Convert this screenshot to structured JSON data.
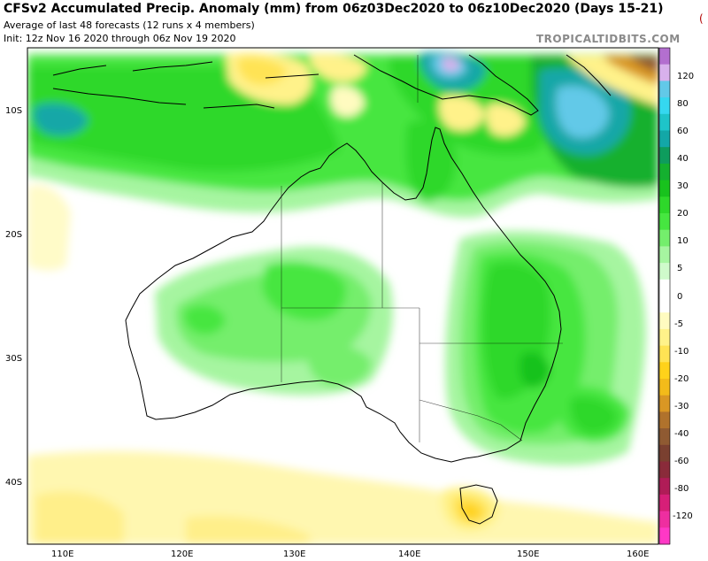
{
  "header": {
    "title": "CFSv2 Accumulated Precip. Anomaly (mm) from 06z03Dec2020 to 06z10Dec2020 (Days 15-21)",
    "subtitle": "Average of last 48 forecasts (12 runs x 4 members)",
    "init": "Init: 12z Nov 16 2020 through 06z Nov 19 2020",
    "brand": "TROPICALTIDBITS.COM",
    "corner_mark": "("
  },
  "map": {
    "region": "Australia",
    "lat_labels": [
      "10S",
      "20S",
      "30S",
      "40S"
    ],
    "lon_labels": [
      "110E",
      "120E",
      "130E",
      "140E",
      "150E",
      "160E"
    ]
  },
  "colorbar": {
    "labels": [
      "120",
      "80",
      "60",
      "40",
      "30",
      "20",
      "10",
      "5",
      "0",
      "-5",
      "-10",
      "-20",
      "-30",
      "-40",
      "-60",
      "-80",
      "-120"
    ],
    "colors": {
      "p140": "#b36fcf",
      "p120": "#d8b1ec",
      "p100": "#62c9e8",
      "p80": "#35d8f0",
      "p60": "#1ec4c9",
      "p50": "#13a7a7",
      "p40": "#0e9c5d",
      "p35": "#14b02f",
      "p30": "#18c21d",
      "p25": "#2ed82a",
      "p20": "#46e640",
      "p15": "#74ee6c",
      "p10": "#a6f5a0",
      "p5": "#cffacb",
      "zero": "#ffffff",
      "m5": "#fffbc0",
      "m10": "#fff28a",
      "m15": "#ffe354",
      "m20": "#ffd21a",
      "m25": "#f3bb1a",
      "m30": "#d99724",
      "m40": "#b0722c",
      "m50": "#8f5a32",
      "m60": "#7a4030",
      "m70": "#8a2b3a",
      "m80": "#b01c57",
      "m100": "#d71f78",
      "m120": "#ee2ea0",
      "m140": "#ff38c6"
    }
  }
}
